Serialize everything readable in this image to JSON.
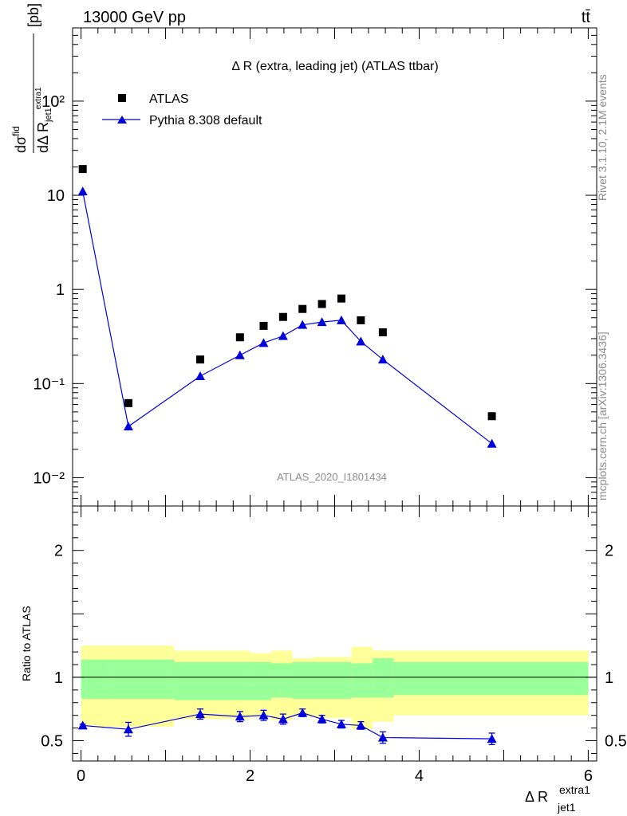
{
  "header": {
    "left": "13000 GeV pp",
    "right": "tt̄"
  },
  "side_text": {
    "rivet": "Rivet 3.1.10,  2.1M events",
    "mcplots": "mcplots.cern.ch [arXiv:1306.3436]"
  },
  "chart_data": [
    {
      "type": "scatter",
      "title": "Δ R (extra, leading jet) (ATLAS ttbar)",
      "watermark": "ATLAS_2020_I1801434",
      "ylabel": "dσ^fid / dΔ R_jet1^extra1 [pb]",
      "yscale": "log",
      "xlim": [
        -0.1,
        6.1
      ],
      "ylim": [
        0.005,
        600
      ],
      "y_ticks_major": [
        {
          "value": 0.01,
          "label": "10⁻²"
        },
        {
          "value": 0.1,
          "label": "10⁻¹"
        },
        {
          "value": 1,
          "label": "1"
        },
        {
          "value": 10,
          "label": "10"
        },
        {
          "value": 100,
          "label": "10²"
        }
      ],
      "legend_position": "top-left",
      "series": [
        {
          "name": "ATLAS",
          "marker": "square",
          "color": "#000000",
          "x": [
            0.02,
            0.56,
            1.41,
            1.88,
            2.16,
            2.39,
            2.62,
            2.85,
            3.08,
            3.31,
            3.57,
            4.86
          ],
          "y": [
            19.0,
            0.062,
            0.18,
            0.31,
            0.41,
            0.51,
            0.62,
            0.7,
            0.8,
            0.47,
            0.35,
            0.045
          ]
        },
        {
          "name": "Pythia 8.308 default",
          "marker": "triangle",
          "color": "#0000dd",
          "x": [
            0.02,
            0.56,
            1.41,
            1.88,
            2.16,
            2.39,
            2.62,
            2.85,
            3.08,
            3.31,
            3.57,
            4.86
          ],
          "y": [
            11.0,
            0.035,
            0.12,
            0.2,
            0.27,
            0.32,
            0.42,
            0.45,
            0.47,
            0.28,
            0.18,
            0.023
          ]
        }
      ]
    },
    {
      "type": "scatter",
      "ylabel": "Ratio to ATLAS",
      "xlabel": "Δ R_jet1^extra1",
      "xlim": [
        -0.1,
        6.1
      ],
      "ylim": [
        0.34,
        2.35
      ],
      "x_ticks": [
        {
          "value": 0,
          "label": "0"
        },
        {
          "value": 2,
          "label": "2"
        },
        {
          "value": 4,
          "label": "4"
        },
        {
          "value": 6,
          "label": "6"
        }
      ],
      "y_ticks": [
        {
          "value": 0.5,
          "label": "0.5"
        },
        {
          "value": 1,
          "label": "1"
        },
        {
          "value": 2,
          "label": "2"
        }
      ],
      "reference_line": 1,
      "bands": {
        "edges": [
          0.0,
          0.3,
          1.1,
          2.0,
          2.25,
          2.5,
          2.75,
          3.2,
          3.45,
          3.7,
          6.0
        ],
        "inner_color": "#99ff99",
        "outer_color": "#ffff99",
        "inner_lo": [
          0.83,
          0.83,
          0.82,
          0.82,
          0.84,
          0.83,
          0.83,
          0.84,
          0.84,
          0.86
        ],
        "inner_hi": [
          1.14,
          1.14,
          1.12,
          1.12,
          1.11,
          1.12,
          1.12,
          1.11,
          1.15,
          1.12
        ],
        "outer_lo": [
          0.61,
          0.61,
          0.67,
          0.7,
          0.66,
          0.69,
          0.68,
          0.59,
          0.65,
          0.7
        ],
        "outer_hi": [
          1.25,
          1.25,
          1.21,
          1.19,
          1.21,
          1.15,
          1.16,
          1.24,
          1.21,
          1.21
        ]
      },
      "series": [
        {
          "name": "Pythia 8.308 default",
          "marker": "triangle",
          "color": "#0000dd",
          "x": [
            0.02,
            0.56,
            1.41,
            1.88,
            2.16,
            2.39,
            2.62,
            2.85,
            3.08,
            3.31,
            3.57,
            4.86
          ],
          "y": [
            0.62,
            0.59,
            0.71,
            0.69,
            0.7,
            0.67,
            0.72,
            0.67,
            0.63,
            0.62,
            0.525,
            0.515
          ],
          "yerr": [
            0.01,
            0.055,
            0.04,
            0.04,
            0.04,
            0.04,
            0.03,
            0.03,
            0.03,
            0.03,
            0.045,
            0.045
          ]
        }
      ]
    }
  ]
}
